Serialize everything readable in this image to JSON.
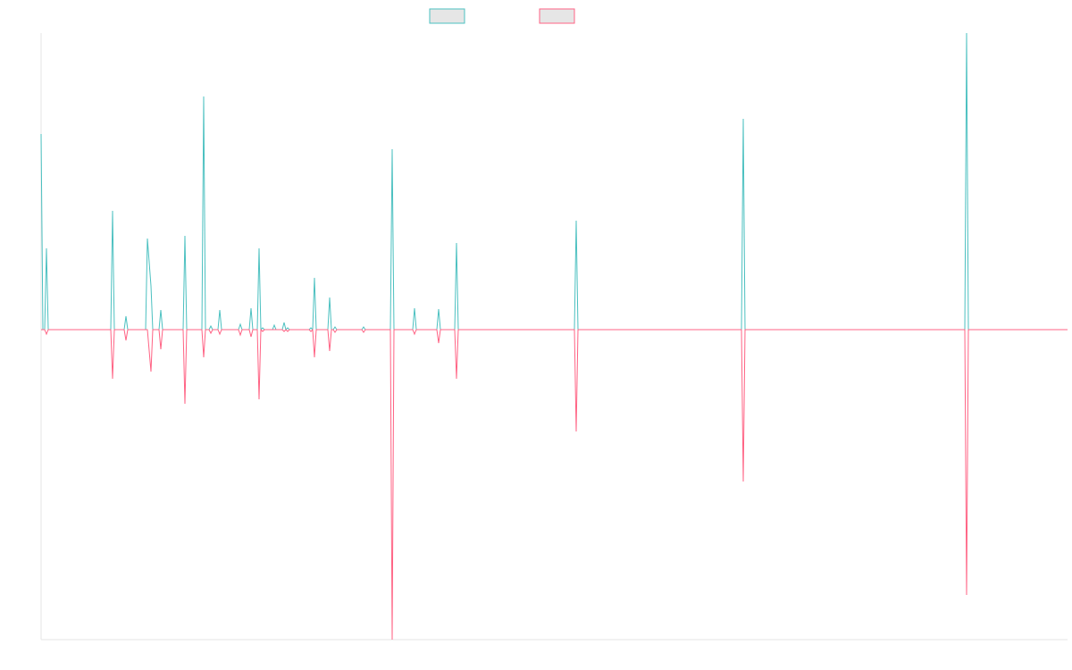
{
  "chart_data": {
    "type": "line",
    "x": [
      0,
      2,
      4,
      6,
      8,
      78,
      80,
      82,
      93,
      95,
      97,
      117,
      119,
      123,
      125,
      132,
      134,
      136,
      159,
      161,
      163,
      180,
      182,
      184,
      188,
      190,
      192,
      198,
      200,
      202,
      221,
      223,
      225,
      233,
      235,
      237,
      242,
      244,
      246,
      248,
      250,
      259,
      261,
      263,
      270,
      272,
      274,
      276,
      278,
      300,
      302,
      304,
      306,
      308,
      321,
      323,
      325,
      327,
      329,
      331,
      359,
      361,
      363,
      391,
      393,
      395,
      416,
      418,
      420,
      443,
      445,
      447,
      463,
      465,
      467,
      597,
      599,
      601,
      784,
      786,
      788,
      1034,
      1036,
      1038,
      1149
    ],
    "xlim": [
      0,
      1149
    ],
    "ylim": [
      -347,
      332
    ],
    "series": [
      {
        "color": "#4bc0c0",
        "values": [
          219,
          0,
          0,
          91,
          0,
          0,
          133,
          0,
          0,
          15,
          0,
          0,
          102,
          49,
          0,
          0,
          22,
          0,
          0,
          105,
          0,
          0,
          261,
          0,
          0,
          4,
          0,
          0,
          22,
          0,
          0,
          6,
          0,
          0,
          24,
          0,
          0,
          91,
          0,
          2,
          0,
          0,
          5,
          0,
          0,
          8,
          0,
          2,
          0,
          0,
          2,
          0,
          58,
          0,
          0,
          36,
          0,
          0,
          3,
          0,
          0,
          3,
          0,
          0,
          202,
          0,
          0,
          24,
          0,
          0,
          23,
          0,
          0,
          97,
          0,
          0,
          122,
          0,
          0,
          236,
          0,
          0,
          332,
          0,
          0
        ]
      },
      {
        "color": "#ff6384",
        "values": [
          0,
          0,
          0,
          -5,
          0,
          0,
          -55,
          0,
          0,
          -12,
          0,
          0,
          0,
          -47,
          0,
          0,
          -22,
          0,
          0,
          -83,
          0,
          0,
          -31,
          0,
          0,
          -4,
          0,
          0,
          -5,
          0,
          0,
          -6,
          0,
          0,
          -8,
          0,
          0,
          -78,
          0,
          -2,
          0,
          0,
          0,
          0,
          0,
          -2,
          0,
          -2,
          0,
          0,
          -2,
          0,
          -31,
          0,
          0,
          -24,
          0,
          0,
          -3,
          0,
          0,
          -3,
          0,
          0,
          -347,
          0,
          0,
          -5,
          0,
          0,
          -15,
          0,
          0,
          -55,
          0,
          0,
          -114,
          0,
          0,
          -170,
          0,
          0,
          -297,
          0,
          0
        ]
      }
    ]
  }
}
